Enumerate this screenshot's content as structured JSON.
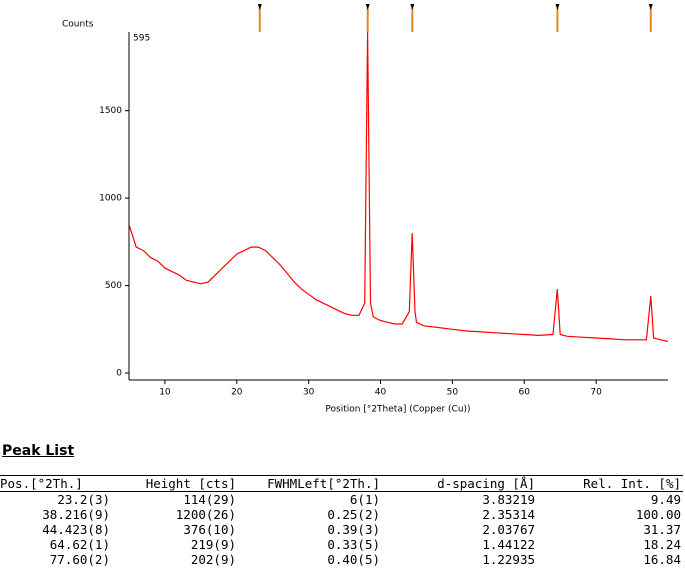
{
  "chart_data": {
    "type": "line",
    "y_title": "Counts",
    "annotation": "595",
    "x_title": "Position [°2Theta] (Copper (Cu))",
    "color": "#ff0000",
    "marker_color": "#e08a1e",
    "x": [
      5,
      6,
      7,
      8,
      9,
      10,
      11,
      12,
      13,
      14,
      15,
      16,
      17,
      18,
      19,
      20,
      21,
      22,
      23,
      24,
      25,
      26,
      27,
      28,
      29,
      30,
      31,
      32,
      33,
      34,
      35,
      36,
      37,
      37.8,
      38.2,
      38.6,
      39,
      40,
      41,
      42,
      43,
      44,
      44.4,
      44.8,
      45,
      46,
      48,
      50,
      52,
      54,
      56,
      58,
      60,
      62,
      64,
      64.6,
      65,
      66,
      68,
      70,
      72,
      74,
      76,
      77,
      77.6,
      78,
      79,
      80
    ],
    "values": [
      850,
      720,
      700,
      660,
      640,
      600,
      580,
      560,
      530,
      520,
      510,
      520,
      560,
      600,
      640,
      680,
      700,
      720,
      720,
      700,
      660,
      620,
      570,
      520,
      480,
      450,
      420,
      400,
      380,
      360,
      340,
      330,
      330,
      400,
      1950,
      400,
      320,
      300,
      290,
      280,
      280,
      350,
      800,
      350,
      290,
      270,
      260,
      250,
      240,
      235,
      230,
      225,
      220,
      215,
      220,
      480,
      220,
      210,
      205,
      200,
      195,
      190,
      190,
      190,
      440,
      200,
      190,
      180
    ],
    "xlim": [
      5,
      80
    ],
    "ylim": [
      -40,
      1950
    ],
    "xticks": [
      10,
      20,
      30,
      40,
      50,
      60,
      70
    ],
    "yticks": [
      0,
      500,
      1000,
      1500
    ],
    "peak_markers": [
      23.2,
      38.216,
      44.423,
      64.62,
      77.6
    ]
  },
  "table": {
    "title": "Peak List",
    "columns": [
      "Pos.[°2Th.]",
      "Height [cts]",
      "FWHMLeft[°2Th.]",
      "d-spacing [Å]",
      "Rel. Int. [%]"
    ],
    "rows": [
      [
        "23.2(3)",
        "114(29)",
        "6(1)",
        "3.83219",
        "9.49"
      ],
      [
        "38.216(9)",
        "1200(26)",
        "0.25(2)",
        "2.35314",
        "100.00"
      ],
      [
        "44.423(8)",
        "376(10)",
        "0.39(3)",
        "2.03767",
        "31.37"
      ],
      [
        "64.62(1)",
        "219(9)",
        "0.33(5)",
        "1.44122",
        "18.24"
      ],
      [
        "77.60(2)",
        "202(9)",
        "0.40(5)",
        "1.22935",
        "16.84"
      ]
    ]
  }
}
